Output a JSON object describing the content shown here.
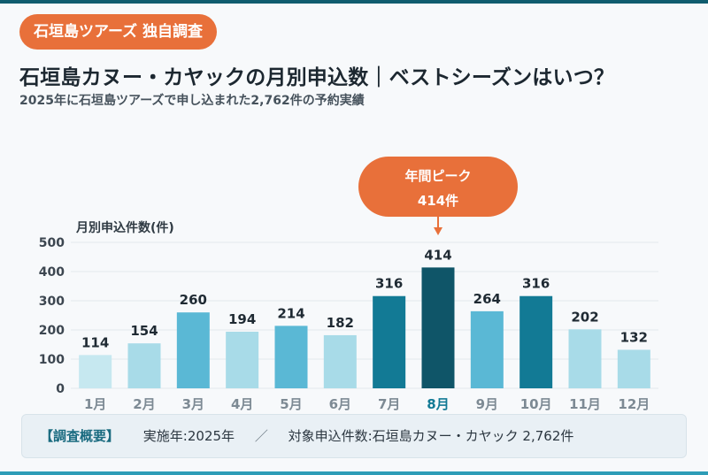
{
  "badge": "石垣島ツアーズ 独自調査",
  "title": "石垣島カヌー・カヤックの月別申込数｜ベストシーズンはいつ？",
  "subtitle": "2025年に石垣島ツアーズで申し込まれた2,762件の予約実績",
  "chart_data": {
    "type": "bar",
    "ylabel": "月別申込件数(件)",
    "ylim": [
      0,
      500
    ],
    "yticks": [
      0,
      100,
      200,
      300,
      400,
      500
    ],
    "grid": true,
    "categories": [
      "1月",
      "2月",
      "3月",
      "4月",
      "5月",
      "6月",
      "7月",
      "8月",
      "9月",
      "10月",
      "11月",
      "12月"
    ],
    "values": [
      114,
      154,
      260,
      194,
      214,
      182,
      316,
      414,
      264,
      316,
      202,
      132
    ],
    "bar_colors": [
      "#c6e8f0",
      "#a8dbe8",
      "#5ab8d5",
      "#a8dbe8",
      "#5ab8d5",
      "#a8dbe8",
      "#127a95",
      "#0f5568",
      "#5ab8d5",
      "#127a95",
      "#a8dbe8",
      "#a8dbe8"
    ],
    "highlight_label_color": "#127a95",
    "callout": {
      "index": 7,
      "line1": "年間ピーク",
      "line2": "414件",
      "color": "#e8703a"
    }
  },
  "summary": {
    "label": "【調査概要】",
    "year": "実施年:2025年",
    "separator": "／",
    "target": "対象申込件数:石垣島カヌー・カヤック 2,762件"
  }
}
